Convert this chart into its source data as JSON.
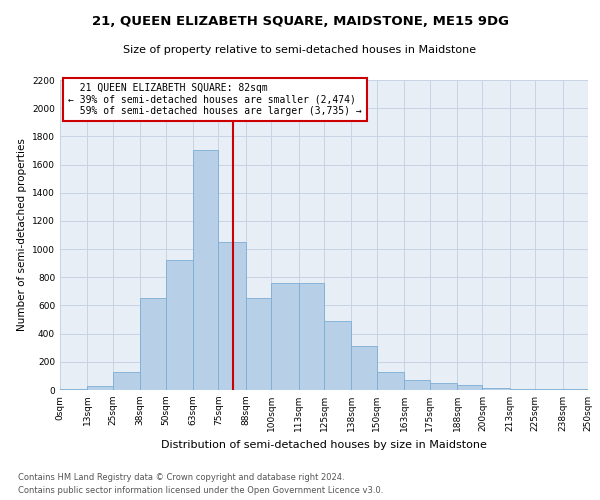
{
  "title": "21, QUEEN ELIZABETH SQUARE, MAIDSTONE, ME15 9DG",
  "subtitle": "Size of property relative to semi-detached houses in Maidstone",
  "xlabel": "Distribution of semi-detached houses by size in Maidstone",
  "ylabel": "Number of semi-detached properties",
  "footer1": "Contains HM Land Registry data © Crown copyright and database right 2024.",
  "footer2": "Contains public sector information licensed under the Open Government Licence v3.0.",
  "property_label": "21 QUEEN ELIZABETH SQUARE: 82sqm",
  "pct_smaller": 39,
  "count_smaller": 2474,
  "pct_larger": 59,
  "count_larger": 3735,
  "bin_labels": [
    "0sqm",
    "13sqm",
    "25sqm",
    "38sqm",
    "50sqm",
    "63sqm",
    "75sqm",
    "88sqm",
    "100sqm",
    "113sqm",
    "125sqm",
    "138sqm",
    "150sqm",
    "163sqm",
    "175sqm",
    "188sqm",
    "200sqm",
    "213sqm",
    "225sqm",
    "238sqm",
    "250sqm"
  ],
  "bin_edges": [
    0,
    13,
    25,
    38,
    50,
    63,
    75,
    88,
    100,
    113,
    125,
    138,
    150,
    163,
    175,
    188,
    200,
    213,
    225,
    238,
    250
  ],
  "bar_values": [
    5,
    25,
    130,
    650,
    920,
    1700,
    1050,
    650,
    760,
    760,
    490,
    310,
    130,
    70,
    50,
    35,
    15,
    5,
    5,
    5
  ],
  "bar_color": "#b8cfe8",
  "bar_edge_color": "#7badd4",
  "vline_color": "#cc0000",
  "vline_x": 82,
  "box_color": "#cc0000",
  "grid_color": "#c8d4e4",
  "background_color": "#e8eef6",
  "ylim": [
    0,
    2200
  ],
  "yticks": [
    0,
    200,
    400,
    600,
    800,
    1000,
    1200,
    1400,
    1600,
    1800,
    2000,
    2200
  ],
  "title_fontsize": 9.5,
  "subtitle_fontsize": 8,
  "ylabel_fontsize": 7.5,
  "xlabel_fontsize": 8,
  "tick_fontsize": 6.5,
  "footer_fontsize": 6
}
